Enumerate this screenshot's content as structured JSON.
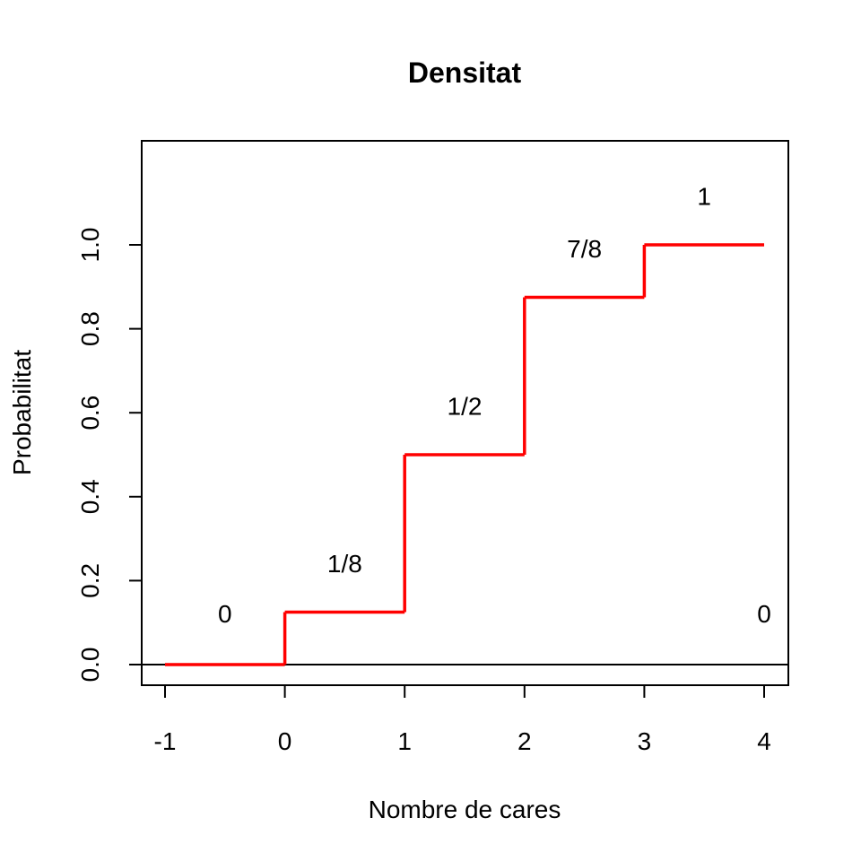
{
  "chart_data": {
    "type": "line",
    "title": "Densitat",
    "xlabel": "Nombre de cares",
    "ylabel": "Probabilitat",
    "xlim": [
      -1.2,
      4.2
    ],
    "ylim": [
      -0.05,
      1.25
    ],
    "x_ticks": [
      -1,
      0,
      1,
      2,
      3,
      4
    ],
    "x_tick_labels": [
      "-1",
      "0",
      "1",
      "2",
      "3",
      "4"
    ],
    "y_ticks": [
      0.0,
      0.2,
      0.4,
      0.6,
      0.8,
      1.0
    ],
    "y_tick_labels": [
      "0.0",
      "0.2",
      "0.4",
      "0.6",
      "0.8",
      "1.0"
    ],
    "grid": false,
    "reference_line_y": 0,
    "series": [
      {
        "color": "#ff0000",
        "step": true,
        "steps": [
          {
            "x0": -1,
            "x1": 0,
            "y": 0
          },
          {
            "x0": 0,
            "x1": 1,
            "y": 0.125
          },
          {
            "x0": 1,
            "x1": 2,
            "y": 0.5
          },
          {
            "x0": 2,
            "x1": 3,
            "y": 0.875
          },
          {
            "x0": 3,
            "x1": 4,
            "y": 1.0
          }
        ]
      }
    ],
    "annotations": [
      {
        "text": "0",
        "x": -0.5,
        "y": 0.1
      },
      {
        "text": "1/8",
        "x": 0.5,
        "y": 0.22
      },
      {
        "text": "1/2",
        "x": 1.5,
        "y": 0.595
      },
      {
        "text": "7/8",
        "x": 2.5,
        "y": 0.97
      },
      {
        "text": "1",
        "x": 3.5,
        "y": 1.095
      },
      {
        "text": "0",
        "x": 4.0,
        "y": 0.1
      }
    ]
  }
}
